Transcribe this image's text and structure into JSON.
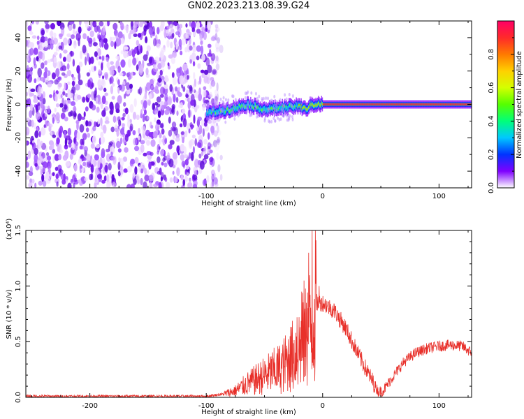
{
  "figure_title": "GN02.2023.213.08.39.G24",
  "colorbar": {
    "label": "Normalized spectral amplitude",
    "range": [
      0.0,
      1.0
    ],
    "ticks": [
      "0.0",
      "0.2",
      "0.4",
      "0.6",
      "0.8"
    ],
    "colormap": [
      "#ffffff",
      "#7f00ff",
      "#0033ff",
      "#00c8ff",
      "#00ff7a",
      "#55ff00",
      "#d4ff00",
      "#ffd000",
      "#ff7a00",
      "#ff2a2a",
      "#ff0066"
    ]
  },
  "chart_data": [
    {
      "type": "heatmap",
      "title": "",
      "xlabel": "Height of straight line (km)",
      "ylabel": "Frequency (Hz)",
      "xlim": [
        -255,
        128
      ],
      "ylim": [
        -50,
        50
      ],
      "xticks": [
        "-200",
        "-100",
        "0",
        "100"
      ],
      "yticks": [
        "-40",
        "-20",
        "0",
        "20",
        "40"
      ],
      "noise_region_x": [
        -255,
        -87
      ],
      "signal_ridge": {
        "x_start": -100,
        "x_end": 128,
        "center_hz": [
          [
            -100,
            -5
          ],
          [
            -80,
            -3
          ],
          [
            -65,
            0
          ],
          [
            -50,
            -3
          ],
          [
            -35,
            -2
          ],
          [
            -20,
            -1
          ],
          [
            -15,
            -3
          ],
          [
            -10,
            0
          ],
          [
            0,
            0
          ],
          [
            128,
            0
          ]
        ]
      }
    },
    {
      "type": "line",
      "title": "",
      "xlabel": "Height of straight line (km)",
      "ylabel": "SNR (10 * v/v)",
      "y_scale_label": "(x10⁴)",
      "xlim": [
        -255,
        128
      ],
      "ylim": [
        0,
        1.5
      ],
      "xticks": [
        "-200",
        "-100",
        "0",
        "100"
      ],
      "yticks": [
        "0.0",
        "0.5",
        "1.0",
        "1.5"
      ],
      "line_color": "#e8302a",
      "series": [
        {
          "x": [
            -255,
            -200,
            -150,
            -100,
            -85,
            -75,
            -65,
            -55,
            -45,
            -35,
            -30,
            -25,
            -20,
            -15,
            -10,
            -8,
            -5,
            0,
            10,
            20,
            30,
            40,
            48,
            52,
            60,
            70,
            80,
            90,
            100,
            110,
            120,
            128
          ],
          "y": [
            0.01,
            0.01,
            0.01,
            0.01,
            0.03,
            0.06,
            0.12,
            0.17,
            0.22,
            0.27,
            0.33,
            0.38,
            0.45,
            0.55,
            0.65,
            0.75,
            0.85,
            0.85,
            0.78,
            0.62,
            0.4,
            0.2,
            0.05,
            0.06,
            0.18,
            0.32,
            0.4,
            0.44,
            0.46,
            0.47,
            0.46,
            0.4
          ]
        }
      ],
      "spikes": [
        {
          "x": -28,
          "y": 0.55
        },
        {
          "x": -22,
          "y": 0.72
        },
        {
          "x": -18,
          "y": 0.95
        },
        {
          "x": -16,
          "y": 1.05
        },
        {
          "x": -14,
          "y": 0.85
        },
        {
          "x": -12,
          "y": 1.3
        },
        {
          "x": -9,
          "y": 1.5
        },
        {
          "x": -6,
          "y": 1.02
        },
        {
          "x": -3,
          "y": 1.0
        }
      ]
    }
  ]
}
